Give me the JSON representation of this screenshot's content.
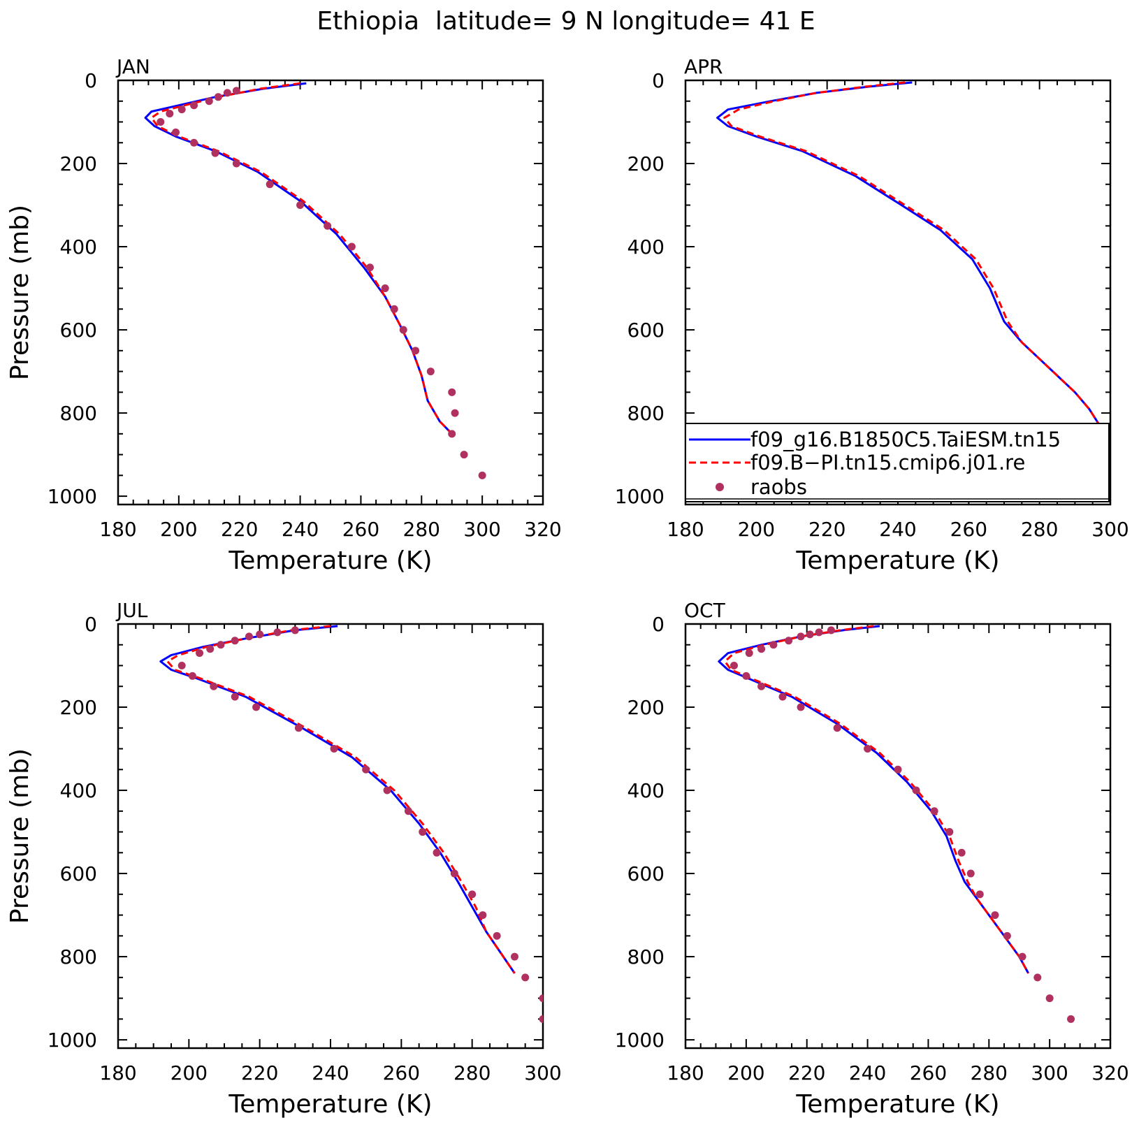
{
  "figure": {
    "title": "Ethiopia  latitude= 9 N longitude= 41 E"
  },
  "legend": {
    "entries": [
      {
        "label": "f09_g16.B1850C5.TaiESM.tn15",
        "color": "#0000ff",
        "style": "solid"
      },
      {
        "label": "f09.B−PI.tn15.cmip6.j01.re",
        "color": "#ff0000",
        "style": "dashed"
      },
      {
        "label": "raobs",
        "color": "#b03060",
        "style": "marker"
      }
    ]
  },
  "chart_data": [
    {
      "type": "line",
      "title": "JAN",
      "xlabel": "Temperature (K)",
      "ylabel": "Pressure (mb)",
      "xlim": [
        180,
        320
      ],
      "ylim": [
        1020,
        0
      ],
      "xticks": [
        180,
        200,
        220,
        240,
        260,
        280,
        300,
        320
      ],
      "yticks": [
        0,
        200,
        400,
        600,
        800,
        1000
      ],
      "series": [
        {
          "name": "f09_g16.B1850C5.TaiESM.tn15",
          "color": "#0000ff",
          "style": "solid",
          "x": [
            242,
            228,
            212,
            200,
            191,
            189,
            192,
            199,
            212,
            226,
            240,
            252,
            261,
            268,
            273,
            277,
            280,
            282,
            286,
            290
          ],
          "y": [
            7,
            20,
            40,
            60,
            75,
            90,
            110,
            135,
            170,
            220,
            290,
            370,
            450,
            520,
            590,
            650,
            710,
            770,
            820,
            850
          ]
        },
        {
          "name": "f09.B−PI.tn15.cmip6.j01.re",
          "color": "#ff0000",
          "style": "dashed",
          "x": [
            240,
            227,
            213,
            202,
            194,
            191,
            193,
            200,
            213,
            227,
            241,
            253,
            262,
            268,
            273,
            277,
            280,
            282,
            286,
            290
          ],
          "y": [
            7,
            20,
            40,
            60,
            75,
            90,
            110,
            135,
            170,
            220,
            290,
            370,
            450,
            520,
            590,
            650,
            710,
            770,
            820,
            850
          ]
        },
        {
          "name": "raobs",
          "color": "#b03060",
          "style": "marker",
          "x": [
            219,
            216,
            213,
            210,
            205,
            201,
            197,
            194,
            199,
            205,
            212,
            219,
            230,
            240,
            249,
            257,
            263,
            268,
            271,
            274,
            278,
            283,
            290,
            291,
            290,
            294,
            300
          ],
          "y": [
            25,
            30,
            40,
            50,
            60,
            70,
            80,
            100,
            125,
            150,
            175,
            200,
            250,
            300,
            350,
            400,
            450,
            500,
            550,
            600,
            650,
            700,
            750,
            800,
            850,
            900,
            950
          ]
        }
      ]
    },
    {
      "type": "line",
      "title": "APR",
      "xlabel": "Temperature (K)",
      "ylabel": "",
      "xlim": [
        180,
        300
      ],
      "ylim": [
        1020,
        0
      ],
      "xticks": [
        180,
        200,
        220,
        240,
        260,
        280,
        300
      ],
      "yticks": [
        0,
        200,
        400,
        600,
        800,
        1000
      ],
      "series": [
        {
          "name": "f09_g16.B1850C5.TaiESM.tn15",
          "color": "#0000ff",
          "style": "solid",
          "x": [
            244,
            232,
            217,
            204,
            192,
            189,
            192,
            200,
            213,
            228,
            241,
            252,
            261,
            266,
            270,
            275,
            280,
            285,
            290,
            294,
            297
          ],
          "y": [
            5,
            15,
            30,
            50,
            70,
            90,
            110,
            135,
            170,
            230,
            300,
            360,
            430,
            500,
            580,
            630,
            670,
            710,
            750,
            790,
            830
          ]
        },
        {
          "name": "f09.B−PI.tn15.cmip6.j01.re",
          "color": "#ff0000",
          "style": "dashed",
          "x": [
            242,
            231,
            217,
            205,
            195,
            191,
            193,
            201,
            214,
            229,
            242,
            253,
            262,
            267,
            271,
            275,
            280,
            285,
            290,
            294,
            297
          ],
          "y": [
            5,
            15,
            30,
            50,
            70,
            90,
            110,
            135,
            170,
            230,
            300,
            360,
            430,
            500,
            580,
            630,
            670,
            710,
            750,
            790,
            830
          ]
        }
      ]
    },
    {
      "type": "line",
      "title": "JUL",
      "xlabel": "Temperature (K)",
      "ylabel": "Pressure (mb)",
      "xlim": [
        180,
        300
      ],
      "ylim": [
        1020,
        0
      ],
      "xticks": [
        180,
        200,
        220,
        240,
        260,
        280,
        300
      ],
      "yticks": [
        0,
        200,
        400,
        600,
        800,
        1000
      ],
      "series": [
        {
          "name": "f09_g16.B1850C5.TaiESM.tn15",
          "color": "#0000ff",
          "style": "solid",
          "x": [
            242,
            230,
            216,
            204,
            195,
            192,
            195,
            202,
            216,
            232,
            246,
            257,
            265,
            271,
            276,
            280,
            284,
            288,
            292
          ],
          "y": [
            5,
            15,
            35,
            55,
            75,
            90,
            110,
            130,
            175,
            250,
            320,
            400,
            480,
            550,
            620,
            680,
            740,
            790,
            840
          ]
        },
        {
          "name": "f09.B−PI.tn15.cmip6.j01.re",
          "color": "#ff0000",
          "style": "dashed",
          "x": [
            240,
            229,
            216,
            205,
            197,
            194,
            196,
            203,
            217,
            233,
            247,
            258,
            266,
            272,
            277,
            281,
            284,
            288,
            292
          ],
          "y": [
            5,
            15,
            35,
            55,
            75,
            90,
            110,
            130,
            175,
            250,
            320,
            400,
            480,
            550,
            620,
            680,
            740,
            790,
            840
          ]
        },
        {
          "name": "raobs",
          "color": "#b03060",
          "style": "marker",
          "x": [
            230,
            225,
            220,
            217,
            213,
            209,
            206,
            203,
            198,
            201,
            207,
            213,
            219,
            231,
            241,
            250,
            256,
            262,
            266,
            270,
            275,
            280,
            283,
            287,
            292,
            295,
            300,
            300
          ],
          "y": [
            15,
            20,
            25,
            30,
            40,
            50,
            60,
            70,
            100,
            125,
            150,
            175,
            200,
            250,
            300,
            350,
            400,
            450,
            500,
            550,
            600,
            650,
            700,
            750,
            800,
            850,
            900,
            950
          ]
        }
      ]
    },
    {
      "type": "line",
      "title": "OCT",
      "xlabel": "Temperature (K)",
      "ylabel": "",
      "xlim": [
        180,
        320
      ],
      "ylim": [
        1020,
        0
      ],
      "xticks": [
        180,
        200,
        220,
        240,
        260,
        280,
        300,
        320
      ],
      "yticks": [
        0,
        200,
        400,
        600,
        800,
        1000
      ],
      "series": [
        {
          "name": "f09_g16.B1850C5.TaiESM.tn15",
          "color": "#0000ff",
          "style": "solid",
          "x": [
            244,
            232,
            218,
            205,
            194,
            191,
            194,
            202,
            215,
            230,
            243,
            253,
            261,
            266,
            269,
            272,
            276,
            280,
            285,
            290,
            293
          ],
          "y": [
            5,
            15,
            30,
            50,
            70,
            90,
            110,
            135,
            175,
            240,
            310,
            380,
            450,
            510,
            570,
            620,
            660,
            700,
            750,
            800,
            840
          ]
        },
        {
          "name": "f09.B−PI.tn15.cmip6.j01.re",
          "color": "#ff0000",
          "style": "dashed",
          "x": [
            242,
            231,
            218,
            206,
            196,
            193,
            195,
            203,
            216,
            231,
            244,
            254,
            262,
            267,
            270,
            273,
            276,
            280,
            285,
            290,
            293
          ],
          "y": [
            5,
            15,
            30,
            50,
            70,
            90,
            110,
            135,
            175,
            240,
            310,
            380,
            450,
            510,
            570,
            620,
            660,
            700,
            750,
            800,
            840
          ]
        },
        {
          "name": "raobs",
          "color": "#b03060",
          "style": "marker",
          "x": [
            228,
            224,
            221,
            218,
            214,
            209,
            205,
            201,
            196,
            200,
            205,
            212,
            218,
            230,
            240,
            250,
            256,
            262,
            267,
            271,
            274,
            277,
            282,
            286,
            291,
            296,
            300,
            307
          ],
          "y": [
            15,
            20,
            25,
            30,
            40,
            50,
            60,
            70,
            100,
            125,
            150,
            175,
            200,
            250,
            300,
            350,
            400,
            450,
            500,
            550,
            600,
            650,
            700,
            750,
            800,
            850,
            900,
            950
          ]
        }
      ]
    }
  ]
}
